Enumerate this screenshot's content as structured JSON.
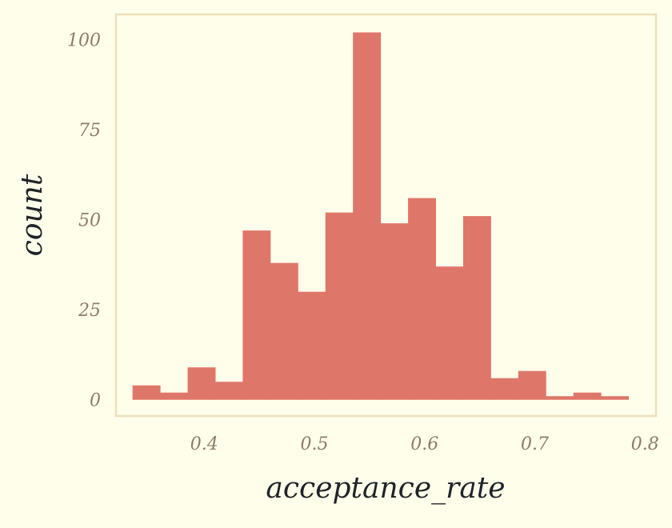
{
  "chart_data": {
    "type": "bar",
    "title": "",
    "xlabel": "acceptance_rate",
    "ylabel": "count",
    "xlim": [
      0.32,
      0.81
    ],
    "ylim": [
      -4.5,
      107
    ],
    "grid": false,
    "legend": "none",
    "bin_edges": [
      0.335,
      0.36,
      0.385,
      0.41,
      0.435,
      0.46,
      0.485,
      0.51,
      0.535,
      0.56,
      0.585,
      0.61,
      0.635,
      0.66,
      0.685,
      0.71,
      0.735,
      0.76,
      0.785
    ],
    "values": [
      4,
      2,
      9,
      5,
      47,
      38,
      30,
      52,
      102,
      49,
      56,
      37,
      51,
      6,
      8,
      1,
      2,
      1
    ],
    "x_ticks": [
      0.4,
      0.5,
      0.6,
      0.7,
      0.8
    ],
    "x_tick_labels": [
      "0.4",
      "0.5",
      "0.6",
      "0.7",
      "0.8"
    ],
    "y_ticks": [
      0,
      25,
      50,
      75,
      100
    ],
    "y_tick_labels": [
      "0",
      "25",
      "50",
      "75",
      "100"
    ],
    "colors": {
      "background": "#fffeea",
      "bar": "#df766a",
      "frame": "#ecdfbb",
      "tick_text": "#8c7c6a",
      "label_text": "#1f2329"
    }
  }
}
